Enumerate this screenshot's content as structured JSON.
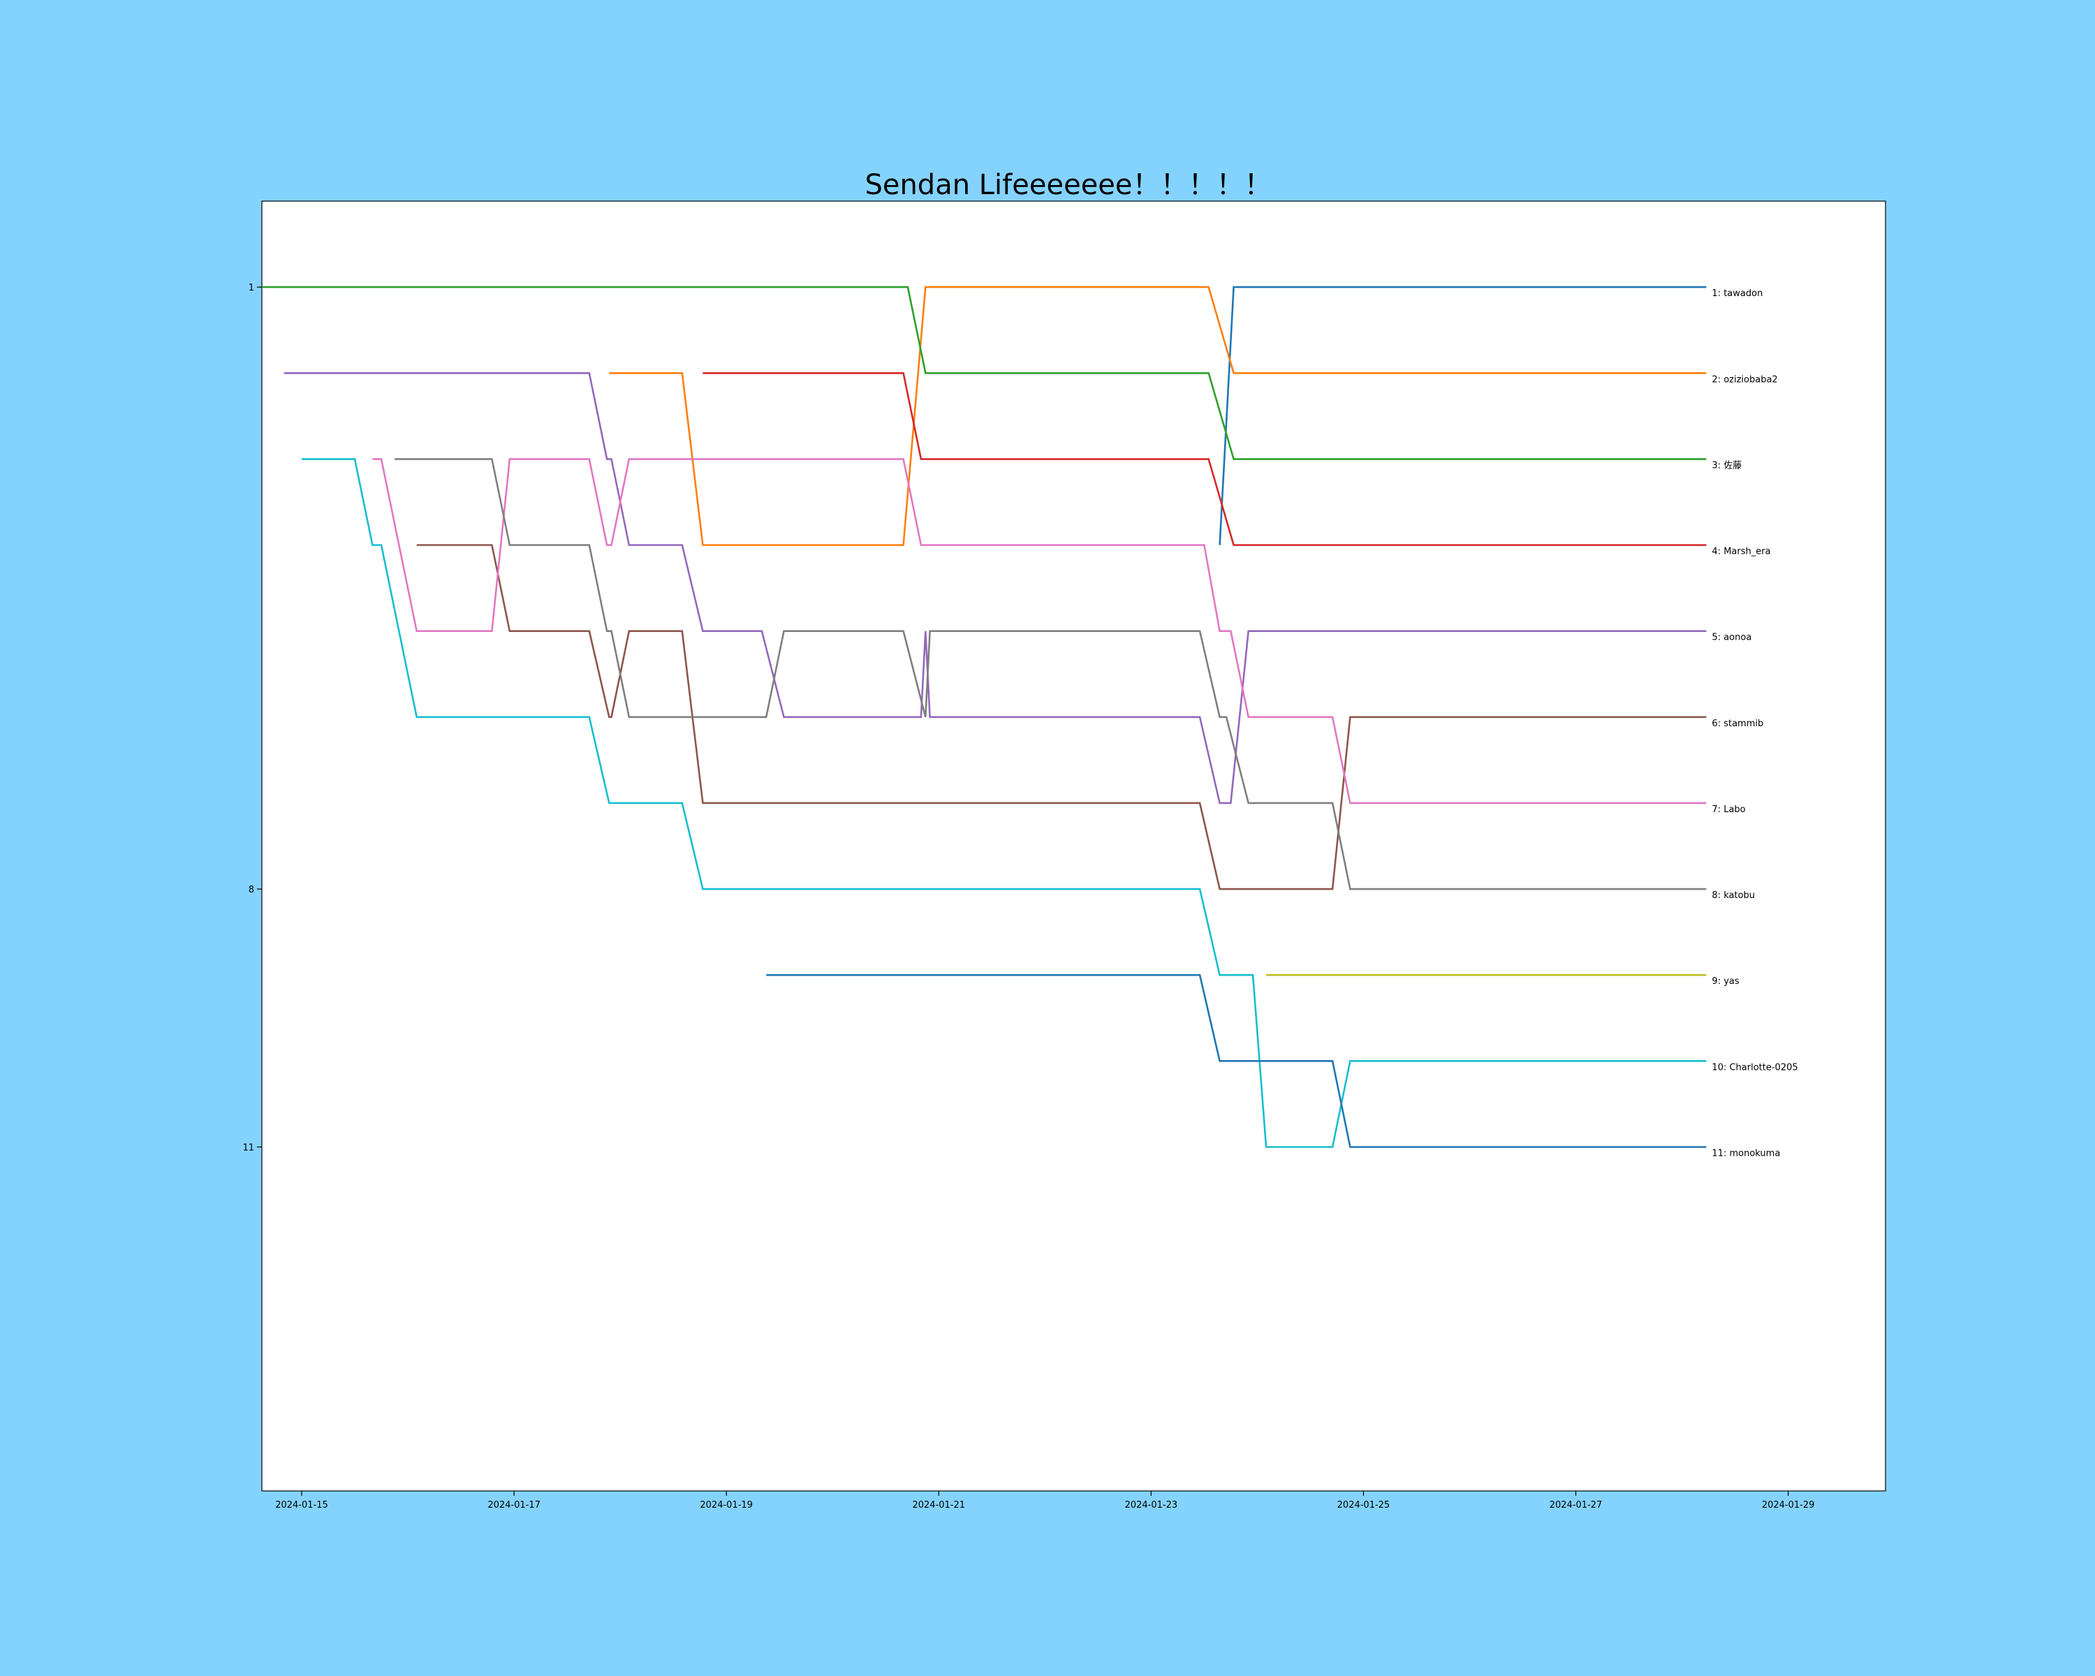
{
  "chart_data": {
    "type": "line",
    "title": "Sendan Lifeeeeeee！！！！！",
    "xlabel": "",
    "ylabel": "",
    "x_type": "date",
    "xlim": [
      "2024-01-14 15:00",
      "2024-01-29 22:00"
    ],
    "ylim": [
      15,
      0
    ],
    "y_inverted": true,
    "x_ticks": [
      "2024-01-15",
      "2024-01-17",
      "2024-01-19",
      "2024-01-21",
      "2024-01-23",
      "2024-01-25",
      "2024-01-27",
      "2024-01-29"
    ],
    "y_ticks": [
      {
        "value": 1,
        "label": "1"
      },
      {
        "value": 8,
        "label": "8"
      },
      {
        "value": 11,
        "label": "11"
      }
    ],
    "grid": false,
    "legend": "none",
    "series_end_labels": true,
    "series": [
      {
        "name": "tawadon",
        "end_label": "1: tawadon",
        "color": "#1f77b4",
        "points": [
          [
            "2024-01-23 15:30",
            4
          ],
          [
            "2024-01-23 18:40",
            1
          ],
          [
            "2024-01-28 05:30",
            1
          ]
        ]
      },
      {
        "name": "oziziobaba2",
        "end_label": "2: oziziobaba2",
        "color": "#ff7f0e",
        "points": [
          [
            "2024-01-17 21:30",
            2
          ],
          [
            "2024-01-18 14:00",
            2
          ],
          [
            "2024-01-18 18:40",
            4
          ],
          [
            "2024-01-20 16:00",
            4
          ],
          [
            "2024-01-20 21:00",
            1
          ],
          [
            "2024-01-23 13:00",
            1
          ],
          [
            "2024-01-23 18:40",
            2
          ],
          [
            "2024-01-28 05:30",
            2
          ]
        ]
      },
      {
        "name": "佐藤",
        "end_label": "3: 佐藤",
        "color": "#2ca02c",
        "points": [
          [
            "2024-01-14 15:00",
            1
          ],
          [
            "2024-01-20 17:00",
            1
          ],
          [
            "2024-01-20 21:00",
            2
          ],
          [
            "2024-01-23 13:00",
            2
          ],
          [
            "2024-01-23 18:40",
            3
          ],
          [
            "2024-01-28 05:30",
            3
          ]
        ]
      },
      {
        "name": "Marsh_era",
        "end_label": "4: Marsh_era",
        "color": "#d62728",
        "points": [
          [
            "2024-01-18 18:40",
            2
          ],
          [
            "2024-01-20 16:00",
            2
          ],
          [
            "2024-01-20 20:00",
            3
          ],
          [
            "2024-01-23 13:00",
            3
          ],
          [
            "2024-01-23 18:40",
            4
          ],
          [
            "2024-01-28 05:30",
            4
          ]
        ]
      },
      {
        "name": "aonoa",
        "end_label": "5: aonoa",
        "color": "#9467bd",
        "points": [
          [
            "2024-01-14 20:00",
            2
          ],
          [
            "2024-01-17 17:00",
            2
          ],
          [
            "2024-01-17 21:00",
            3
          ],
          [
            "2024-01-17 22:00",
            3
          ],
          [
            "2024-01-18 02:00",
            4
          ],
          [
            "2024-01-18 14:00",
            4
          ],
          [
            "2024-01-18 18:40",
            5
          ],
          [
            "2024-01-19 08:00",
            5
          ],
          [
            "2024-01-19 13:00",
            6
          ],
          [
            "2024-01-20 20:00",
            6
          ],
          [
            "2024-01-20 21:00",
            5
          ],
          [
            "2024-01-20 22:00",
            6
          ],
          [
            "2024-01-23 11:00",
            6
          ],
          [
            "2024-01-23 15:30",
            7
          ],
          [
            "2024-01-23 18:00",
            7
          ],
          [
            "2024-01-23 22:00",
            5
          ],
          [
            "2024-01-28 05:30",
            5
          ]
        ]
      },
      {
        "name": "stammib",
        "end_label": "6: stammib",
        "color": "#8c564b",
        "points": [
          [
            "2024-01-16 02:00",
            4
          ],
          [
            "2024-01-16 19:00",
            4
          ],
          [
            "2024-01-16 23:00",
            5
          ],
          [
            "2024-01-17 17:00",
            5
          ],
          [
            "2024-01-17 21:30",
            6
          ],
          [
            "2024-01-17 22:00",
            6
          ],
          [
            "2024-01-18 02:00",
            5
          ],
          [
            "2024-01-18 14:00",
            5
          ],
          [
            "2024-01-18 18:40",
            7
          ],
          [
            "2024-01-23 11:00",
            7
          ],
          [
            "2024-01-23 15:30",
            8
          ],
          [
            "2024-01-24 17:00",
            8
          ],
          [
            "2024-01-24 21:00",
            6
          ],
          [
            "2024-01-28 05:30",
            6
          ]
        ]
      },
      {
        "name": "Labo",
        "end_label": "7: Labo",
        "color": "#e377c2",
        "points": [
          [
            "2024-01-15 16:00",
            3
          ],
          [
            "2024-01-15 18:00",
            3
          ],
          [
            "2024-01-16 02:00",
            5
          ],
          [
            "2024-01-16 19:00",
            5
          ],
          [
            "2024-01-16 23:00",
            3
          ],
          [
            "2024-01-17 17:00",
            3
          ],
          [
            "2024-01-17 21:00",
            4
          ],
          [
            "2024-01-17 22:00",
            4
          ],
          [
            "2024-01-18 02:00",
            3
          ],
          [
            "2024-01-20 16:00",
            3
          ],
          [
            "2024-01-20 20:00",
            4
          ],
          [
            "2024-01-23 12:00",
            4
          ],
          [
            "2024-01-23 15:30",
            5
          ],
          [
            "2024-01-23 18:00",
            5
          ],
          [
            "2024-01-23 22:00",
            6
          ],
          [
            "2024-01-24 17:00",
            6
          ],
          [
            "2024-01-24 21:00",
            7
          ],
          [
            "2024-01-28 05:30",
            7
          ]
        ]
      },
      {
        "name": "katobu",
        "end_label": "8: katobu",
        "color": "#7f7f7f",
        "points": [
          [
            "2024-01-15 21:00",
            3
          ],
          [
            "2024-01-16 19:00",
            3
          ],
          [
            "2024-01-16 23:00",
            4
          ],
          [
            "2024-01-17 17:00",
            4
          ],
          [
            "2024-01-17 21:00",
            5
          ],
          [
            "2024-01-17 22:00",
            5
          ],
          [
            "2024-01-18 02:00",
            6
          ],
          [
            "2024-01-19 09:00",
            6
          ],
          [
            "2024-01-19 13:00",
            5
          ],
          [
            "2024-01-20 16:00",
            5
          ],
          [
            "2024-01-20 21:00",
            6
          ],
          [
            "2024-01-20 22:00",
            5
          ],
          [
            "2024-01-23 11:00",
            5
          ],
          [
            "2024-01-23 15:30",
            6
          ],
          [
            "2024-01-23 17:00",
            6
          ],
          [
            "2024-01-23 22:00",
            7
          ],
          [
            "2024-01-24 17:00",
            7
          ],
          [
            "2024-01-24 21:00",
            8
          ],
          [
            "2024-01-28 05:30",
            8
          ]
        ]
      },
      {
        "name": "yas",
        "end_label": "9: yas",
        "color": "#bcbd22",
        "points": [
          [
            "2024-01-24 02:00",
            9
          ],
          [
            "2024-01-28 05:30",
            9
          ]
        ]
      },
      {
        "name": "Charlotte-0205",
        "end_label": "10: Charlotte-0205",
        "color": "#17becf",
        "points": [
          [
            "2024-01-15 00:00",
            3
          ],
          [
            "2024-01-15 12:00",
            3
          ],
          [
            "2024-01-15 16:00",
            4
          ],
          [
            "2024-01-15 18:00",
            4
          ],
          [
            "2024-01-16 02:00",
            6
          ],
          [
            "2024-01-17 17:00",
            6
          ],
          [
            "2024-01-17 21:30",
            7
          ],
          [
            "2024-01-18 14:00",
            7
          ],
          [
            "2024-01-18 18:40",
            8
          ],
          [
            "2024-01-23 11:00",
            8
          ],
          [
            "2024-01-23 15:30",
            9
          ],
          [
            "2024-01-23 23:00",
            9
          ],
          [
            "2024-01-24 02:00",
            11
          ],
          [
            "2024-01-24 17:00",
            11
          ],
          [
            "2024-01-24 21:00",
            10
          ],
          [
            "2024-01-28 05:30",
            10
          ]
        ]
      },
      {
        "name": "monokuma",
        "end_label": "11: monokuma",
        "color": "#1f77b4",
        "points": [
          [
            "2024-01-19 09:00",
            9
          ],
          [
            "2024-01-23 11:00",
            9
          ],
          [
            "2024-01-23 15:30",
            10
          ],
          [
            "2024-01-24 17:00",
            10
          ],
          [
            "2024-01-24 21:00",
            11
          ],
          [
            "2024-01-28 05:30",
            11
          ]
        ]
      }
    ]
  }
}
